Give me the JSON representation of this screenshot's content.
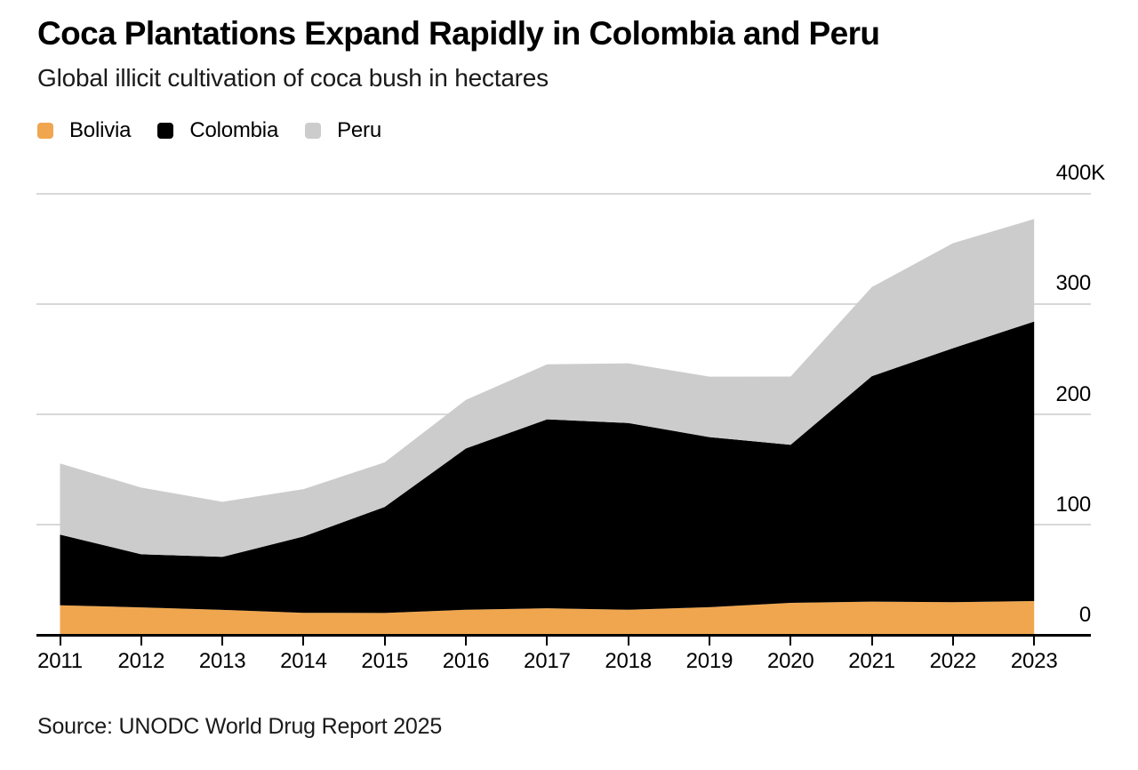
{
  "header": {
    "title": "Coca Plantations Expand Rapidly in Colombia and Peru",
    "subtitle": "Global illicit cultivation of coca bush in hectares"
  },
  "legend": [
    {
      "label": "Bolivia",
      "color": "#f0a64e"
    },
    {
      "label": "Colombia",
      "color": "#000000"
    },
    {
      "label": "Peru",
      "color": "#cccccc"
    }
  ],
  "chart_data": {
    "type": "area",
    "stacked": true,
    "title": "Coca Plantations Expand Rapidly in Colombia and Peru",
    "subtitle": "Global illicit cultivation of coca bush in hectares",
    "units": "hectares",
    "x": [
      2011,
      2012,
      2013,
      2014,
      2015,
      2016,
      2017,
      2018,
      2019,
      2020,
      2021,
      2022,
      2023
    ],
    "x_tick_labels": [
      "2011",
      "2012",
      "2013",
      "2014",
      "2015",
      "2016",
      "2017",
      "2018",
      "2019",
      "2020",
      "2021",
      "2022",
      "2023"
    ],
    "series": [
      {
        "name": "Bolivia",
        "color": "#f0a64e",
        "values": [
          27200,
          25300,
          23000,
          20400,
          20200,
          23100,
          24500,
          23100,
          25400,
          29400,
          30500,
          29900,
          31000
        ]
      },
      {
        "name": "Colombia",
        "color": "#000000",
        "values": [
          64000,
          48000,
          48000,
          69000,
          96000,
          146000,
          171000,
          169000,
          154000,
          143000,
          204000,
          230000,
          253000
        ]
      },
      {
        "name": "Peru",
        "color": "#cccccc",
        "values": [
          64400,
          60400,
          49800,
          42900,
          40300,
          43900,
          49800,
          54100,
          54700,
          61800,
          80700,
          95000,
          92800
        ]
      }
    ],
    "ylim": [
      0,
      400000
    ],
    "y_ticks": [
      {
        "value": 400000,
        "label": "400K"
      },
      {
        "value": 300000,
        "label": "300"
      },
      {
        "value": 200000,
        "label": "200"
      },
      {
        "value": 100000,
        "label": "100"
      },
      {
        "value": 0,
        "label": "0"
      }
    ],
    "grid": "horizontal",
    "legend_position": "top-left",
    "colors": {
      "gridline": "#d8d8d8",
      "axis": "#000000",
      "background": "#ffffff"
    }
  },
  "footer": {
    "source": "Source: UNODC World Drug Report 2025"
  }
}
